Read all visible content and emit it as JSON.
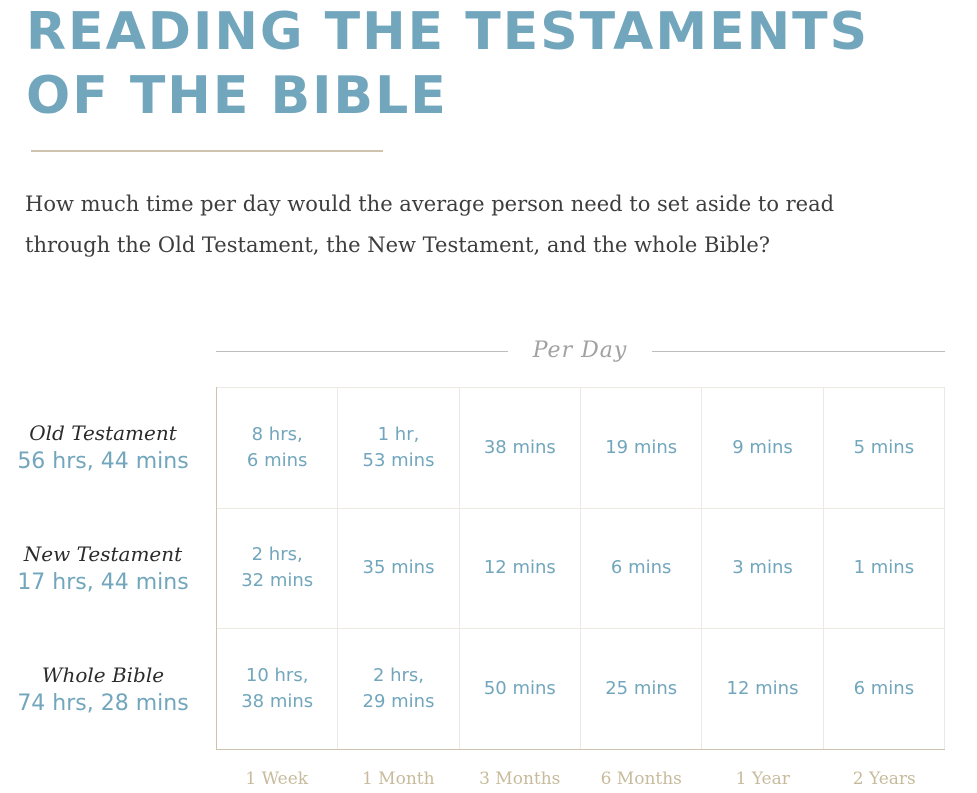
{
  "title": {
    "line1": "READING THE TESTAMENTS",
    "line2": "OF THE BIBLE"
  },
  "intro": "How much time per day would the average person need to set aside to read through the Old Testament, the New Testament, and the whole Bible?",
  "per_day_label": "Per Day",
  "colors": {
    "accent": "#72a6bc",
    "tan": "#c7bb9c",
    "rule": "#cdc3ae",
    "text": "#3d3d3d"
  },
  "columns": [
    "1 Week",
    "1 Month",
    "3 Months",
    "6 Months",
    "1 Year",
    "2 Years"
  ],
  "rows": [
    {
      "name": "Old Testament",
      "total": "56 hrs, 44 mins",
      "cells": [
        "8 hrs,\n6 mins",
        "1 hr,\n53 mins",
        "38 mins",
        "19 mins",
        "9 mins",
        "5 mins"
      ]
    },
    {
      "name": "New Testament",
      "total": "17 hrs, 44 mins",
      "cells": [
        "2 hrs,\n32 mins",
        "35 mins",
        "12 mins",
        "6 mins",
        "3 mins",
        "1 mins"
      ]
    },
    {
      "name": "Whole Bible",
      "total": "74 hrs, 28 mins",
      "cells": [
        "10 hrs,\n38 mins",
        "2 hrs,\n29 mins",
        "50 mins",
        "25 mins",
        "12 mins",
        "6 mins"
      ]
    }
  ]
}
